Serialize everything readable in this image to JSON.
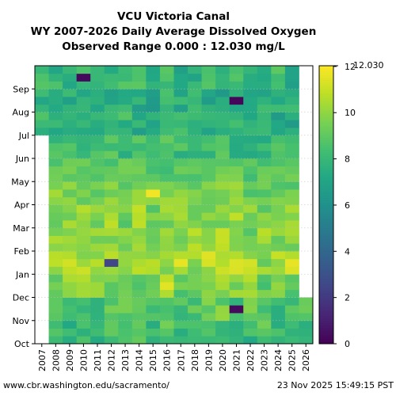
{
  "chart_data": {
    "type": "heatmap",
    "title_lines": [
      "VCU Victoria Canal",
      "WY 2007-2026 Daily Average Dissolved Oxygen",
      "Observed Range 0.000 : 12.030 mg/L"
    ],
    "x_categories": [
      "2007",
      "2008",
      "2009",
      "2010",
      "2011",
      "2012",
      "2013",
      "2014",
      "2015",
      "2016",
      "2017",
      "2018",
      "2019",
      "2020",
      "2021",
      "2022",
      "2023",
      "2024",
      "2025",
      "2026"
    ],
    "y_month_labels": [
      "Oct",
      "Nov",
      "Dec",
      "Jan",
      "Feb",
      "Mar",
      "Apr",
      "May",
      "Jun",
      "Jul",
      "Aug",
      "Sep"
    ],
    "colorbar": {
      "min": 0,
      "max": 12.03,
      "ticks": [
        0,
        2,
        4,
        6,
        8,
        10,
        12
      ],
      "tick_labels": [
        "0",
        "2",
        "4",
        "6",
        "8",
        "10",
        "12"
      ],
      "max_label": "12.030",
      "colormap": "viridis"
    },
    "grid": true,
    "seasonal_profile_mg_per_l": {
      "months": [
        "Oct",
        "Nov",
        "Dec",
        "Jan",
        "Feb",
        "Mar",
        "Apr",
        "May",
        "Jun",
        "Jul",
        "Aug",
        "Sep"
      ],
      "typical": [
        8.3,
        8.8,
        9.6,
        10.4,
        10.1,
        9.8,
        9.4,
        8.9,
        8.3,
        7.7,
        7.4,
        8.0
      ]
    },
    "data_coverage": {
      "2007": "Jul-Sep only",
      "2026": "Oct-Nov only"
    },
    "notable_values": [
      {
        "year": "2010",
        "month": "Sep",
        "value": 0.3
      },
      {
        "year": "2021",
        "month": "Aug",
        "value": 0.2
      },
      {
        "year": "2021",
        "month": "Nov",
        "value": 0.3
      },
      {
        "year": "2012",
        "month": "Jan",
        "value": 2.5
      },
      {
        "year": "2015",
        "month": "Apr",
        "value": 11.8
      },
      {
        "year": "2016",
        "month": "Dec",
        "value": 11.5
      },
      {
        "year": "2009",
        "month": "Jan",
        "value": 11.2
      }
    ]
  },
  "footer": {
    "left": "www.cbr.washington.edu/sacramento/",
    "right": "23 Nov 2025 15:49:15 PST"
  }
}
